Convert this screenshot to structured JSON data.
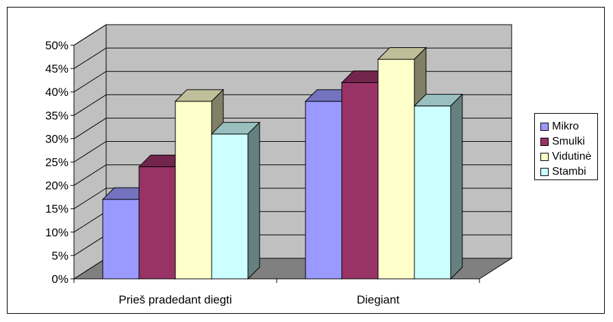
{
  "chart_data": {
    "type": "bar",
    "categories": [
      "Prieš pradedant diegti",
      "Diegiant"
    ],
    "series": [
      {
        "name": "Mikro",
        "values": [
          17,
          38
        ],
        "color": "#9999FF"
      },
      {
        "name": "Smulki",
        "values": [
          24,
          42
        ],
        "color": "#993366"
      },
      {
        "name": "Vidutinė",
        "values": [
          38,
          47
        ],
        "color": "#FFFFCC"
      },
      {
        "name": "Stambi",
        "values": [
          31,
          37
        ],
        "color": "#CCFFFF"
      }
    ],
    "y_ticks": [
      "0%",
      "5%",
      "10%",
      "15%",
      "20%",
      "25%",
      "30%",
      "35%",
      "40%",
      "45%",
      "50%"
    ],
    "ylim": [
      0,
      50
    ],
    "grid": true,
    "legend_position": "right",
    "wall_color": "#C0C0C0",
    "floor_color": "#808080"
  }
}
